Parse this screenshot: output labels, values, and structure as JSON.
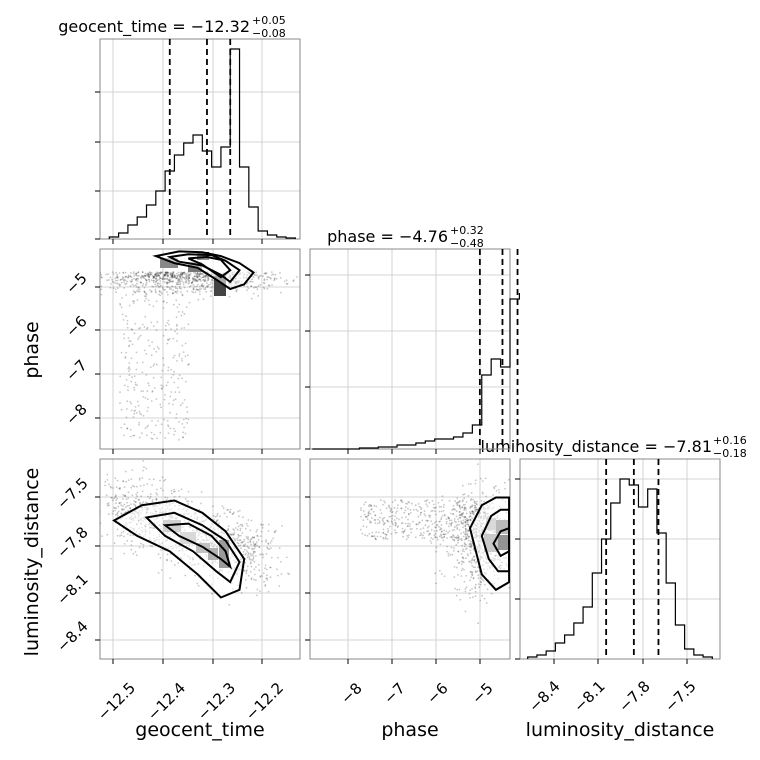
{
  "chart_data": [
    {
      "type": "histogram",
      "panel": "geocent_time-marginal",
      "title": "geocent_time = −12.32",
      "title_sup": "+0.05",
      "title_sub": "−0.08",
      "xlim": [
        -12.55,
        -12.12
      ],
      "ylim": [
        0,
        1.0
      ],
      "quantile_lines": [
        -12.4,
        -12.32,
        -12.27
      ],
      "bin_edges": [
        -12.53,
        -12.51,
        -12.49,
        -12.47,
        -12.45,
        -12.43,
        -12.41,
        -12.39,
        -12.37,
        -12.35,
        -12.33,
        -12.31,
        -12.29,
        -12.27,
        -12.25,
        -12.23,
        -12.21,
        -12.19,
        -12.17,
        -12.15,
        -12.13
      ],
      "counts": [
        0.01,
        0.03,
        0.07,
        0.11,
        0.17,
        0.24,
        0.34,
        0.42,
        0.48,
        0.52,
        0.44,
        0.36,
        0.46,
        0.95,
        0.36,
        0.16,
        0.04,
        0.02,
        0.01,
        0.005
      ]
    },
    {
      "type": "scatter-contour",
      "panel": "geocent_time-vs-phase",
      "xlim": [
        -12.55,
        -12.12
      ],
      "ylim": [
        -8.8,
        -4.55
      ],
      "x_samples": [
        -12.52,
        -12.49,
        -12.47,
        -12.45,
        -12.43,
        -12.41,
        -12.39,
        -12.37,
        -12.35,
        -12.33,
        -12.31,
        -12.29,
        -12.27,
        -12.25,
        -12.23,
        -12.21,
        -12.19,
        -12.17,
        -12.15,
        -12.44,
        -12.46,
        -12.48,
        -12.45,
        -12.43,
        -12.42,
        -12.47,
        -12.5,
        -12.44,
        -12.4
      ],
      "y_samples": [
        -4.85,
        -4.9,
        -4.8,
        -4.95,
        -4.9,
        -4.8,
        -4.75,
        -4.7,
        -4.8,
        -4.85,
        -4.9,
        -4.75,
        -5.0,
        -5.1,
        -4.9,
        -5.0,
        -5.1,
        -4.95,
        -4.9,
        -5.6,
        -5.8,
        -6.1,
        -6.4,
        -6.9,
        -7.3,
        -7.6,
        -7.0,
        -8.2,
        -8.5
      ],
      "contour_levels": [
        {
          "x": [
            -12.43,
            -12.38,
            -12.33,
            -12.29,
            -12.25,
            -12.22,
            -12.24,
            -12.27,
            -12.3,
            -12.34,
            -12.39,
            -12.43
          ],
          "y": [
            -4.7,
            -4.6,
            -4.62,
            -4.7,
            -4.85,
            -5.05,
            -5.3,
            -5.4,
            -5.2,
            -4.95,
            -4.85,
            -4.7
          ]
        },
        {
          "x": [
            -12.4,
            -12.36,
            -12.31,
            -12.28,
            -12.25,
            -12.27,
            -12.29,
            -12.33,
            -12.38,
            -12.4
          ],
          "y": [
            -4.72,
            -4.66,
            -4.68,
            -4.8,
            -5.0,
            -5.25,
            -5.1,
            -4.9,
            -4.82,
            -4.72
          ]
        },
        {
          "x": [
            -12.36,
            -12.32,
            -12.29,
            -12.27,
            -12.29,
            -12.33,
            -12.36
          ],
          "y": [
            -4.75,
            -4.72,
            -4.78,
            -5.0,
            -5.15,
            -4.88,
            -4.75
          ]
        }
      ],
      "yticks": [
        "−5",
        "−6",
        "−7",
        "−8"
      ],
      "ylabel": "phase"
    },
    {
      "type": "histogram",
      "panel": "phase-marginal",
      "title": "phase = −4.76",
      "title_sup": "+0.32",
      "title_sub": "−0.48",
      "xlim": [
        -8.85,
        -4.6
      ],
      "ylim": [
        0,
        1.0
      ],
      "quantile_lines": [
        -5.24,
        -4.76,
        -4.44
      ],
      "bin_edges": [
        -8.8,
        -8.6,
        -8.4,
        -8.2,
        -8.0,
        -7.8,
        -7.6,
        -7.4,
        -7.2,
        -7.0,
        -6.8,
        -6.6,
        -6.4,
        -6.2,
        -6.0,
        -5.8,
        -5.6,
        -5.4,
        -5.2,
        -5.0,
        -4.8,
        -4.6,
        -4.4
      ],
      "counts": [
        0.0,
        0.0,
        0.0,
        0.0,
        0.0,
        0.005,
        0.005,
        0.01,
        0.01,
        0.02,
        0.02,
        0.03,
        0.04,
        0.05,
        0.05,
        0.06,
        0.08,
        0.12,
        0.37,
        0.45,
        0.41,
        0.75,
        0.78
      ]
    },
    {
      "type": "scatter-contour",
      "panel": "geocent_time-vs-luminosity_distance",
      "xlim": [
        -12.55,
        -12.12
      ],
      "ylim": [
        -8.55,
        -7.25
      ],
      "contour_levels": [
        {
          "x": [
            -12.52,
            -12.46,
            -12.39,
            -12.33,
            -12.28,
            -12.24,
            -12.25,
            -12.29,
            -12.34,
            -12.4,
            -12.47,
            -12.52
          ],
          "y": [
            -7.65,
            -7.55,
            -7.52,
            -7.6,
            -7.72,
            -7.9,
            -8.1,
            -8.15,
            -8.0,
            -7.85,
            -7.75,
            -7.65
          ]
        },
        {
          "x": [
            -12.45,
            -12.39,
            -12.33,
            -12.28,
            -12.25,
            -12.27,
            -12.3,
            -12.35,
            -12.41,
            -12.45
          ],
          "y": [
            -7.63,
            -7.6,
            -7.68,
            -7.78,
            -7.92,
            -8.05,
            -7.98,
            -7.85,
            -7.75,
            -7.63
          ]
        },
        {
          "x": [
            -12.41,
            -12.36,
            -12.31,
            -12.28,
            -12.27,
            -12.29,
            -12.33,
            -12.38,
            -12.41
          ],
          "y": [
            -7.68,
            -7.67,
            -7.75,
            -7.85,
            -7.95,
            -7.9,
            -7.82,
            -7.75,
            -7.68
          ]
        }
      ],
      "xticks": [
        "−12.5",
        "−12.4",
        "−12.3",
        "−12.2"
      ],
      "yticks": [
        "−7.5",
        "−7.8",
        "−8.1",
        "−8.4"
      ],
      "xlabel": "geocent_time",
      "ylabel": "luminosity_distance"
    },
    {
      "type": "scatter-contour",
      "panel": "phase-vs-luminosity_distance",
      "xlim": [
        -8.85,
        -4.6
      ],
      "ylim": [
        -8.55,
        -7.25
      ],
      "contour_levels": [
        {
          "x": [
            -5.45,
            -5.2,
            -4.9,
            -4.62,
            -4.62,
            -4.9,
            -5.2,
            -5.45
          ],
          "y": [
            -7.7,
            -7.55,
            -7.5,
            -7.5,
            -8.05,
            -8.1,
            -8.0,
            -7.7
          ]
        },
        {
          "x": [
            -5.2,
            -5.0,
            -4.8,
            -4.62,
            -4.62,
            -4.85,
            -5.05,
            -5.2
          ],
          "y": [
            -7.75,
            -7.62,
            -7.58,
            -7.58,
            -7.98,
            -7.98,
            -7.9,
            -7.75
          ]
        },
        {
          "x": [
            -4.95,
            -4.8,
            -4.62,
            -4.62,
            -4.8,
            -4.95
          ],
          "y": [
            -7.8,
            -7.72,
            -7.7,
            -7.85,
            -7.88,
            -7.8
          ]
        }
      ],
      "xticks": [
        "−8",
        "−7",
        "−6",
        "−5"
      ],
      "xlabel": "phase"
    },
    {
      "type": "histogram",
      "panel": "luminosity_distance-marginal",
      "title": "luminosity_distance = −7.81",
      "title_sup": "+0.16",
      "title_sub": "−0.18",
      "xlim": [
        -8.55,
        -7.25
      ],
      "ylim": [
        0,
        1.0
      ],
      "quantile_lines": [
        -7.99,
        -7.81,
        -7.65
      ],
      "bin_edges": [
        -8.5,
        -8.44,
        -8.38,
        -8.32,
        -8.26,
        -8.2,
        -8.14,
        -8.08,
        -8.02,
        -7.96,
        -7.9,
        -7.84,
        -7.78,
        -7.72,
        -7.66,
        -7.6,
        -7.54,
        -7.48,
        -7.42,
        -7.36,
        -7.3
      ],
      "counts": [
        0.01,
        0.02,
        0.04,
        0.08,
        0.12,
        0.18,
        0.26,
        0.43,
        0.6,
        0.78,
        0.9,
        0.87,
        0.76,
        0.85,
        0.63,
        0.38,
        0.17,
        0.05,
        0.02,
        0.01
      ],
      "xticks": [
        "−8.4",
        "−8.1",
        "−7.8",
        "−7.5"
      ],
      "xlabel": "luminosity_distance"
    }
  ]
}
